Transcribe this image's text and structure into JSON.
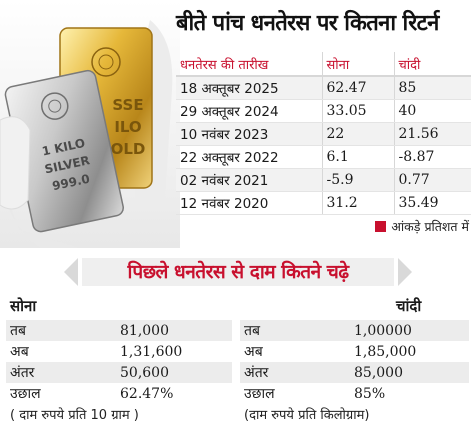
{
  "headline": "बीते पांच धनतेरस पर कितना रिटर्न",
  "returns_table": {
    "headers": {
      "date": "धनतेरस की तारीख",
      "gold": "सोना",
      "silver": "चांदी"
    },
    "rows": [
      {
        "date": "18 अक्तूबर 2025",
        "gold": "62.47",
        "silver": "85"
      },
      {
        "date": "29 अक्तूबर 2024",
        "gold": "33.05",
        "silver": "40"
      },
      {
        "date": "10 नवंबर 2023",
        "gold": "22",
        "silver": "21.56"
      },
      {
        "date": "22 अक्तूबर 2022",
        "gold": "6.1",
        "silver": "-8.87"
      },
      {
        "date": "02 नवंबर 2021",
        "gold": "-5.9",
        "silver": "0.77"
      },
      {
        "date": "12 नवंबर 2020",
        "gold": "31.2",
        "silver": "35.49"
      }
    ]
  },
  "note": {
    "text": "आंकड़े प्रतिशत में",
    "swatch_color": "#c8102e"
  },
  "photo": {
    "silver_bar_text": [
      "1 KILO",
      "SILVER",
      "999.0"
    ],
    "gold_bar_text": [
      "SSE",
      "ILO",
      "OLD"
    ]
  },
  "banner": {
    "title": "पिछले धनतेरस से दाम कितने चढ़े"
  },
  "gold_panel": {
    "title": "सोना",
    "rows": [
      {
        "label": "तब",
        "value": "81,000"
      },
      {
        "label": "अब",
        "value": "1,31,600"
      },
      {
        "label": "अंतर",
        "value": "50,600"
      },
      {
        "label": "उछाल",
        "value": "62.47%"
      }
    ],
    "unit": "( दाम रुपये प्रति 10 ग्राम )"
  },
  "silver_panel": {
    "title": "चांदी",
    "rows": [
      {
        "label": "तब",
        "value": "1,00000"
      },
      {
        "label": "अब",
        "value": "1,85,000"
      },
      {
        "label": "अंतर",
        "value": "85,000"
      },
      {
        "label": "उछाल",
        "value": "85%"
      }
    ],
    "unit": "(दाम रुपये प्रति किलोग्राम)"
  },
  "colors": {
    "accent_red": "#c8102e",
    "row_shade": "#f2f2f2"
  }
}
